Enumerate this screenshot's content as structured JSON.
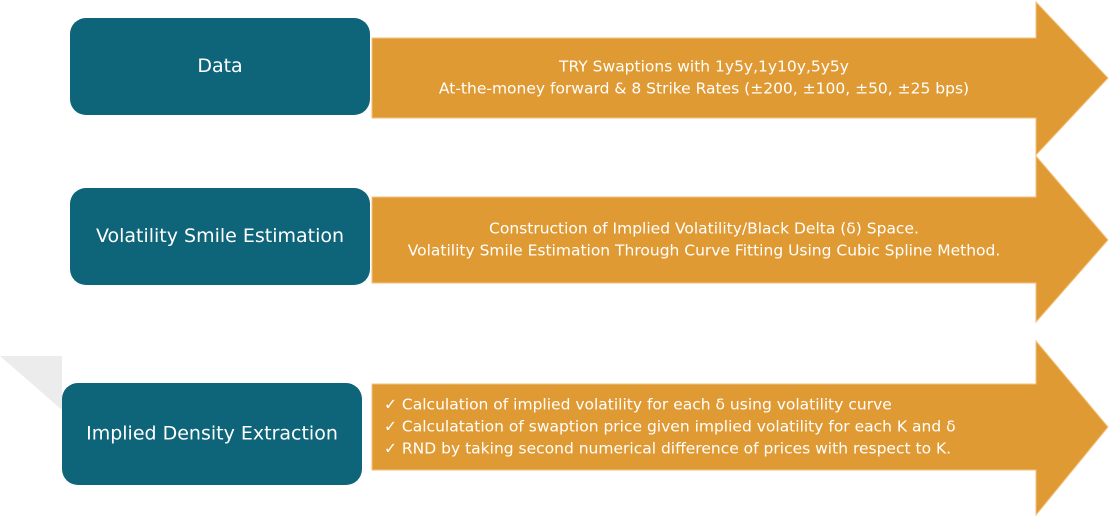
{
  "rows": [
    {
      "label": "Data",
      "lines": [
        "TRY Swaptions with 1y5y,1y10y,5y5y",
        "At-the-money forward & 8 Strike Rates (±200, ±100, ±50, ±25 bps)"
      ]
    },
    {
      "label": "Volatility Smile Estimation",
      "lines": [
        "Construction of Implied Volatility/Black Delta (δ) Space.",
        "Volatility Smile Estimation Through Curve Fitting Using Cubic Spline Method."
      ]
    },
    {
      "label": "Implied Density Extraction",
      "lines": [
        "✓  Calculation of implied volatility for each δ using volatility curve",
        "✓  Calculatation of swaption price given implied volatility for each K and δ",
        "✓  RND by taking second numerical difference of prices with respect to K."
      ]
    }
  ]
}
